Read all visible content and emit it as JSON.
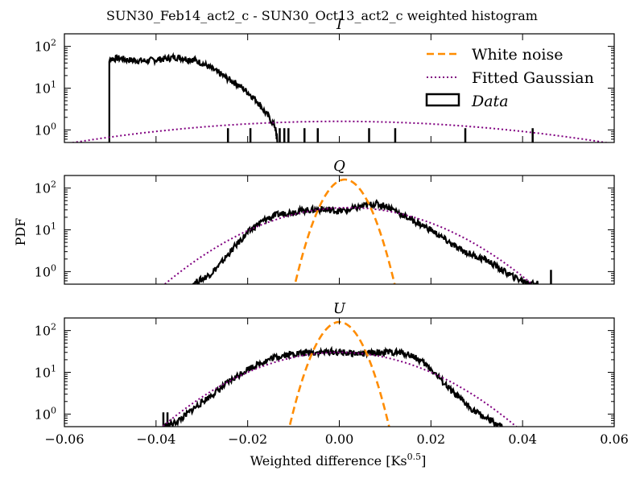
{
  "chart_data": {
    "type": "histogram",
    "title": "SUN30_Feb14_act2_c - SUN30_Oct13_act2_c weighted histogram",
    "ylabel": "PDF",
    "xlabel": "Weighted difference [Ks⁰⋅⁵]",
    "xlabel_parts": {
      "base": "Weighted difference [Ks",
      "sup": "0.5",
      "close": "]"
    },
    "xlim": [
      -0.06,
      0.06
    ],
    "xticks": [
      -0.06,
      -0.04,
      -0.02,
      0.0,
      0.02,
      0.04,
      0.06
    ],
    "xtick_labels": [
      "−0.06",
      "−0.04",
      "−0.02",
      "0.00",
      "0.02",
      "0.04",
      "0.06"
    ],
    "y_scale": "log",
    "ylim": [
      0.5,
      200
    ],
    "yticks": [
      {
        "value": 1,
        "base": "10",
        "exp": "0"
      },
      {
        "value": 10,
        "base": "10",
        "exp": "1"
      },
      {
        "value": 100,
        "base": "10",
        "exp": "2"
      }
    ],
    "legend": {
      "placement": "top-right",
      "entries": [
        {
          "label": "White noise",
          "style": "dashed",
          "color": "#ff8c00"
        },
        {
          "label": "Fitted Gaussian",
          "style": "dotted",
          "color": "#800080"
        },
        {
          "label": "Data",
          "style": "box",
          "color": "#000000",
          "italic": true
        }
      ]
    },
    "colors": {
      "data": "#000000",
      "white_noise": "#ff8c00",
      "gaussian": "#800080"
    },
    "panels": [
      {
        "name": "I",
        "data_outline": [
          [
            -0.0502,
            0.5
          ],
          [
            -0.0502,
            50
          ],
          [
            -0.048,
            52
          ],
          [
            -0.046,
            47
          ],
          [
            -0.044,
            46
          ],
          [
            -0.042,
            45
          ],
          [
            -0.04,
            48
          ],
          [
            -0.038,
            50
          ],
          [
            -0.036,
            55
          ],
          [
            -0.034,
            52
          ],
          [
            -0.032,
            48
          ],
          [
            -0.03,
            40
          ],
          [
            -0.028,
            30
          ],
          [
            -0.026,
            22
          ],
          [
            -0.024,
            16
          ],
          [
            -0.022,
            12
          ],
          [
            -0.02,
            8
          ],
          [
            -0.018,
            5
          ],
          [
            -0.016,
            2.5
          ],
          [
            -0.014,
            1.2
          ],
          [
            -0.0135,
            0.5
          ]
        ],
        "data_spikes": [
          -0.0243,
          -0.0194,
          -0.013,
          -0.012,
          -0.0111,
          -0.0076,
          -0.0047,
          0.0065,
          0.0122,
          0.0275,
          0.0422
        ],
        "gaussian": {
          "mu": 0.0,
          "sigma": 0.038,
          "amp": 1.6
        }
      },
      {
        "name": "Q",
        "data_outline": [
          [
            -0.0322,
            0.5
          ],
          [
            -0.03,
            0.65
          ],
          [
            -0.028,
            0.9
          ],
          [
            -0.026,
            1.5
          ],
          [
            -0.024,
            2.8
          ],
          [
            -0.022,
            5
          ],
          [
            -0.02,
            8.5
          ],
          [
            -0.018,
            13
          ],
          [
            -0.016,
            18
          ],
          [
            -0.014,
            22
          ],
          [
            -0.012,
            25
          ],
          [
            -0.01,
            27
          ],
          [
            -0.008,
            29
          ],
          [
            -0.006,
            30
          ],
          [
            -0.004,
            31
          ],
          [
            -0.002,
            30
          ],
          [
            0.0,
            28
          ],
          [
            0.002,
            30
          ],
          [
            0.004,
            34
          ],
          [
            0.006,
            39
          ],
          [
            0.008,
            42
          ],
          [
            0.01,
            38
          ],
          [
            0.012,
            30
          ],
          [
            0.014,
            22
          ],
          [
            0.016,
            17
          ],
          [
            0.018,
            13
          ],
          [
            0.02,
            10
          ],
          [
            0.022,
            7
          ],
          [
            0.024,
            5
          ],
          [
            0.026,
            3.5
          ],
          [
            0.028,
            2.8
          ],
          [
            0.03,
            2.3
          ],
          [
            0.032,
            1.9
          ],
          [
            0.034,
            1.4
          ],
          [
            0.036,
            1.0
          ],
          [
            0.038,
            0.75
          ],
          [
            0.04,
            0.6
          ],
          [
            0.0415,
            0.55
          ],
          [
            0.0435,
            0.5
          ]
        ],
        "data_spikes": [
          0.0462
        ],
        "white_noise": {
          "mu": 0.0012,
          "sigma": 0.0032,
          "amp": 160
        },
        "gaussian": {
          "mu": 0.002,
          "sigma": 0.0138,
          "amp": 34
        }
      },
      {
        "name": "U",
        "data_outline": [
          [
            -0.0385,
            0.5
          ],
          [
            -0.036,
            0.6
          ],
          [
            -0.034,
            0.85
          ],
          [
            -0.032,
            1.3
          ],
          [
            -0.03,
            1.9
          ],
          [
            -0.028,
            2.8
          ],
          [
            -0.026,
            4
          ],
          [
            -0.024,
            6
          ],
          [
            -0.022,
            8.5
          ],
          [
            -0.02,
            12
          ],
          [
            -0.018,
            15
          ],
          [
            -0.016,
            19
          ],
          [
            -0.014,
            23
          ],
          [
            -0.012,
            26
          ],
          [
            -0.01,
            28
          ],
          [
            -0.008,
            29
          ],
          [
            -0.006,
            30
          ],
          [
            -0.004,
            30
          ],
          [
            -0.002,
            31
          ],
          [
            0.0,
            30
          ],
          [
            0.002,
            29
          ],
          [
            0.004,
            28
          ],
          [
            0.006,
            28
          ],
          [
            0.008,
            29
          ],
          [
            0.01,
            30
          ],
          [
            0.012,
            30
          ],
          [
            0.014,
            29
          ],
          [
            0.016,
            25
          ],
          [
            0.018,
            18
          ],
          [
            0.02,
            12
          ],
          [
            0.022,
            7
          ],
          [
            0.024,
            4
          ],
          [
            0.026,
            2.5
          ],
          [
            0.028,
            1.6
          ],
          [
            0.03,
            1.1
          ],
          [
            0.032,
            0.8
          ],
          [
            0.034,
            0.6
          ],
          [
            0.0355,
            0.5
          ]
        ],
        "data_spikes": [
          -0.0384,
          -0.0375
        ],
        "white_noise": {
          "mu": 0.0,
          "sigma": 0.0032,
          "amp": 160
        },
        "gaussian": {
          "mu": 0.0,
          "sigma": 0.0135,
          "amp": 30
        }
      }
    ]
  }
}
